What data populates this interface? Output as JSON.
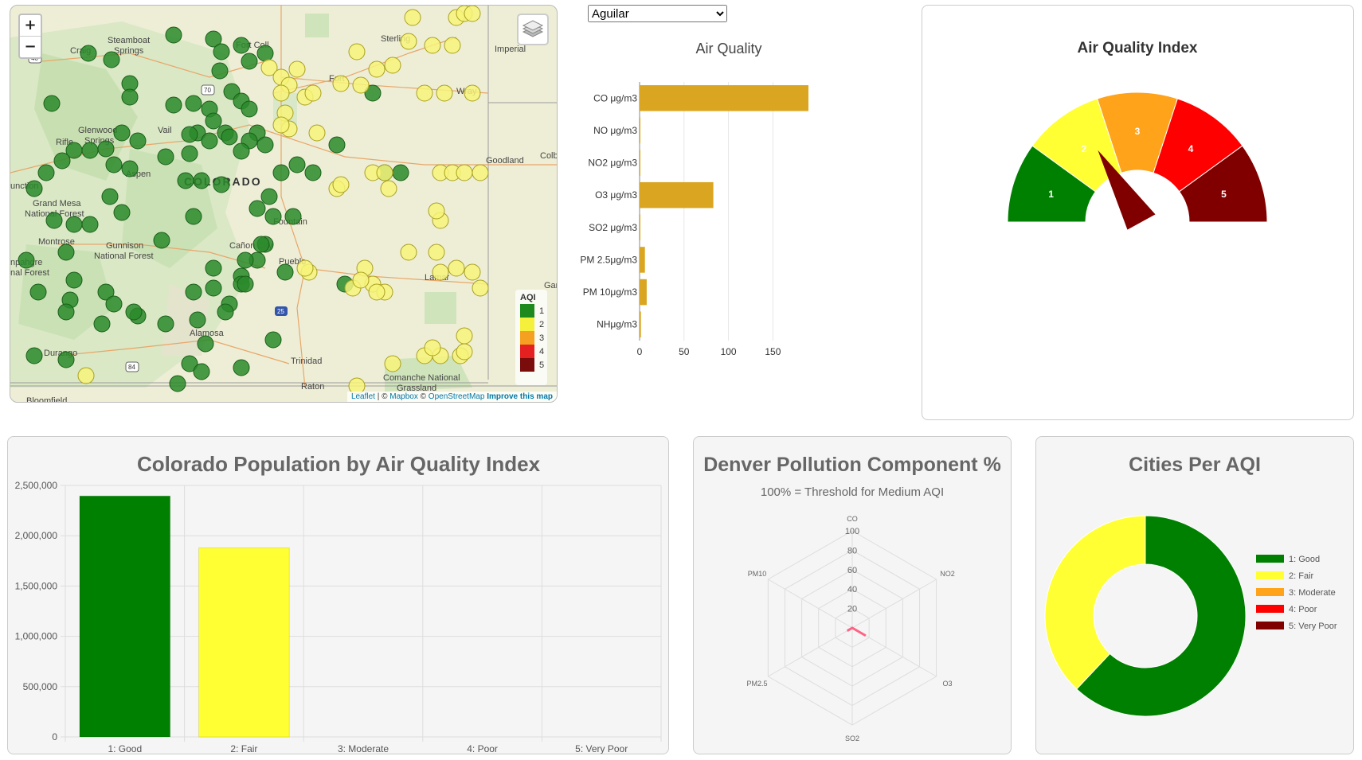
{
  "map": {
    "zoom_in": "+",
    "zoom_out": "−",
    "labels": {
      "steamboat": "Steamboat",
      "springs": "Springs",
      "craig": "Craig",
      "fort_collins": "Fort Coll",
      "sterling": "Sterling",
      "imperial": "Imperial",
      "fort_morgan": "Fort",
      "wray": "Wray",
      "glenwood": "Glenwood",
      "glenwood2": "Springs",
      "vail": "Vail",
      "rifle": "Rifle",
      "aspen": "Aspen",
      "colorado": "COLORADO",
      "goodland": "Goodland",
      "colby": "Colb",
      "junction": "unction",
      "grand_mesa": "Grand Mesa",
      "natl_forest": "National Forest",
      "montrose": "Montrose",
      "gunnison": "Gunnison",
      "gunnison_nf": "National Forest",
      "fountain": "Fountain",
      "canon": "Cañon City",
      "pueblo": "Pueblo",
      "lamar": "Lamar",
      "garden": "Gar",
      "uncompahgre": "npahgre",
      "uncompahgre2": "nal Forest",
      "alamosa": "Alamosa",
      "durango": "Durango",
      "trinidad": "Trinidad",
      "raton": "Raton",
      "comanche": "Comanche National",
      "grassland": "Grassland",
      "bloomfield": "Bloomfield",
      "hwy40": "40",
      "hwy25": "25",
      "hwy84": "84",
      "i70": "70"
    },
    "legend": {
      "title": "AQI",
      "items": [
        {
          "label": "1",
          "color": "#1e8a1e"
        },
        {
          "label": "2",
          "color": "#f5f03c"
        },
        {
          "label": "3",
          "color": "#f5a020"
        },
        {
          "label": "4",
          "color": "#e42020"
        },
        {
          "label": "5",
          "color": "#7a0c0c"
        }
      ]
    },
    "attribution": {
      "leaflet": "Leaflet",
      "sep1": " | © ",
      "mapbox": "Mapbox",
      "sep2": " © ",
      "osm": "OpenStreetMap",
      "improve": "Improve this map"
    }
  },
  "city_select": {
    "selected": "Aguilar"
  },
  "gauge": {
    "title": "Air Quality Index",
    "segments": [
      {
        "label": "1",
        "color": "#008000"
      },
      {
        "label": "2",
        "color": "#ffff33"
      },
      {
        "label": "3",
        "color": "#ffa31a"
      },
      {
        "label": "4",
        "color": "#ff0000"
      },
      {
        "label": "5",
        "color": "#800000"
      }
    ],
    "needle_value": 1.7,
    "needle_color": "#800000"
  },
  "chart_data": [
    {
      "type": "bar",
      "orientation": "horizontal",
      "title": "Air Quality",
      "categories": [
        "CO μg/m3",
        "NO μg/m3",
        "NO2 μg/m3",
        "O3 μg/m3",
        "SO2 μg/m3",
        "PM 2.5μg/m3",
        "PM 10μg/m3",
        "NHμg/m3"
      ],
      "values": [
        190,
        0.1,
        0.3,
        83,
        0.2,
        6,
        8,
        1.5
      ],
      "xticks": [
        "0",
        "50",
        "100",
        "150"
      ],
      "xlim": [
        0,
        190
      ],
      "color": "#daa520",
      "grid": true
    },
    {
      "type": "bar",
      "title": "Colorado Population by Air Quality Index",
      "categories": [
        "1: Good",
        "2: Fair",
        "3: Moderate",
        "4: Poor",
        "5: Very Poor"
      ],
      "values": [
        2395000,
        1880000,
        0,
        0,
        0
      ],
      "colors": [
        "#008000",
        "#ffff33",
        "#ffa31a",
        "#ff0000",
        "#800000"
      ],
      "yticks": [
        "0",
        "500,000",
        "1,000,000",
        "1,500,000",
        "2,000,000",
        "2,500,000"
      ],
      "ylim": [
        0,
        2500000
      ],
      "grid": true
    },
    {
      "type": "radar",
      "title": "Denver Pollution Component %",
      "subtitle": "100% = Threshold for Medium AQI",
      "axes": [
        "CO",
        "NO2",
        "O3",
        "SO2",
        "PM2.5",
        "PM10"
      ],
      "values": [
        0,
        0,
        16,
        0,
        6,
        0
      ],
      "rticks": [
        "20",
        "40",
        "60",
        "80",
        "100"
      ],
      "rlim": [
        0,
        100
      ],
      "color": "#ff6384"
    },
    {
      "type": "pie",
      "donut": true,
      "title": "Cities Per AQI",
      "legend_position": "right",
      "labels": [
        "1: Good",
        "2: Fair",
        "3: Moderate",
        "4: Poor",
        "5: Very Poor"
      ],
      "values": [
        62,
        38,
        0,
        0,
        0
      ],
      "colors": [
        "#008000",
        "#ffff33",
        "#ffa31a",
        "#ff0000",
        "#800000"
      ]
    }
  ]
}
